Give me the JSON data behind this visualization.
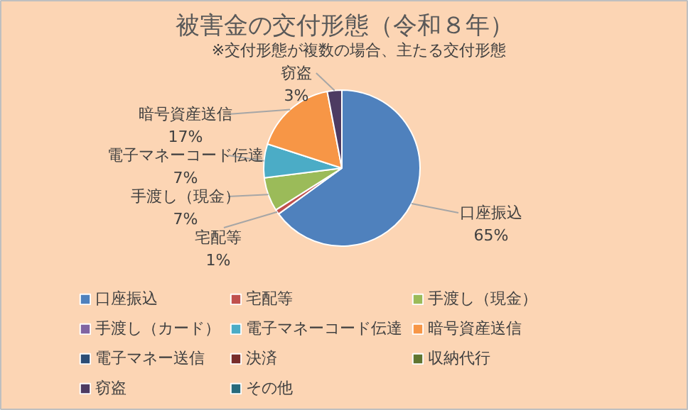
{
  "chart_data": {
    "type": "pie",
    "title": "被害金の交付形態（令和８年）",
    "subtitle": "※交付形態が複数の場合、主たる交付形態",
    "categories": [
      "口座振込",
      "宅配等",
      "手渡し（現金）",
      "手渡し（カード）",
      "電子マネーコード伝達",
      "暗号資産送信",
      "電子マネー送信",
      "決済",
      "収納代行",
      "窃盗",
      "その他"
    ],
    "values": [
      65,
      1,
      7,
      0,
      7,
      17,
      0,
      0,
      0,
      3,
      0
    ],
    "value_labels": [
      "65%",
      "1%",
      "7%",
      null,
      "7%",
      "17%",
      null,
      null,
      null,
      "3%",
      null
    ],
    "colors": [
      "#4f81bd",
      "#c0504d",
      "#9bbb59",
      "#8064a2",
      "#4bacc6",
      "#f79646",
      "#2c4d75",
      "#772c2a",
      "#5f7530",
      "#4d3b62",
      "#276a7c"
    ],
    "legend": "bottom"
  }
}
